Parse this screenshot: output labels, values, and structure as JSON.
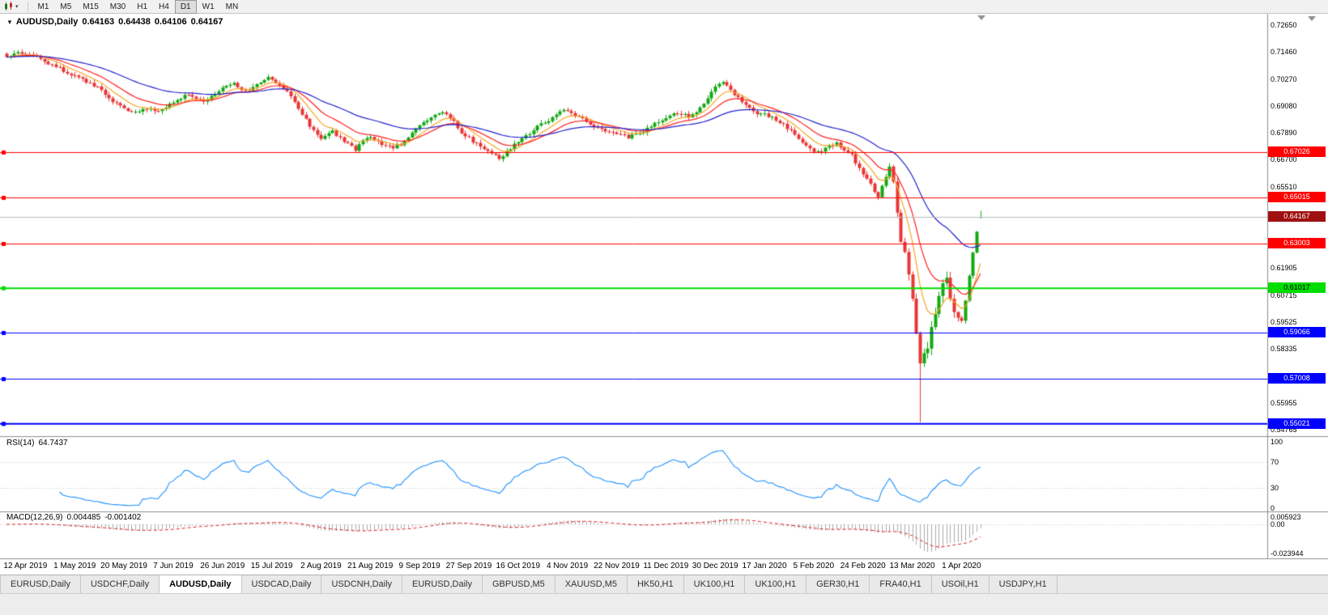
{
  "toolbar": {
    "timeframes": [
      "M1",
      "M5",
      "M15",
      "M30",
      "H1",
      "H4",
      "D1",
      "W1",
      "MN"
    ],
    "active_timeframe": "D1"
  },
  "icons": {
    "indicator_arrow": "▼",
    "chart_type_dropdown": "▾"
  },
  "chart_header": {
    "symbol": "AUDUSD,Daily",
    "open": "0.64163",
    "high": "0.64438",
    "low": "0.64106",
    "close": "0.64167"
  },
  "price_axis": {
    "ticks": [
      "0.72650",
      "0.71460",
      "0.70270",
      "0.69080",
      "0.67890",
      "0.66700",
      "0.65510",
      "0.61905",
      "0.60715",
      "0.59525",
      "0.58335",
      "0.55955",
      "0.54765"
    ]
  },
  "hlines": [
    {
      "price": 0.67026,
      "label": "0.67026",
      "color": "#FF0000",
      "width": 1,
      "text": "#FFFFFF"
    },
    {
      "price": 0.65015,
      "label": "0.65015",
      "color": "#FF0000",
      "width": 1,
      "text": "#FFFFFF"
    },
    {
      "price": 0.63003,
      "label": "0.63003",
      "color": "#FF0000",
      "width": 1,
      "text": "#FFFFFF"
    },
    {
      "price": 0.61017,
      "label": "0.61017",
      "color": "#00DD00",
      "width": 2,
      "text": "#000000"
    },
    {
      "price": 0.59066,
      "label": "0.59066",
      "color": "#0000FF",
      "width": 1,
      "text": "#FFFFFF"
    },
    {
      "price": 0.57008,
      "label": "0.57008",
      "color": "#0000FF",
      "width": 1,
      "text": "#FFFFFF"
    },
    {
      "price": 0.55021,
      "label": "0.55021",
      "color": "#0000FF",
      "width": 2,
      "text": "#FFFFFF"
    }
  ],
  "current_price": {
    "value": 0.64167,
    "label": "0.64167",
    "line_color": "#BBBBBB",
    "label_bg": "#A01010",
    "text": "#FFFFFF"
  },
  "rsi_panel": {
    "name": "RSI(14)",
    "value": "64.7437",
    "ticks": [
      100,
      70,
      30,
      0
    ],
    "levels": [
      70,
      30
    ],
    "line_color": "#1E90FF"
  },
  "macd_panel": {
    "name": "MACD(12,26,9)",
    "main_value": "0.004485",
    "signal_value": "-0.001402",
    "tick_values": [
      0.005923,
      0,
      -0.023944
    ],
    "tick_labels": [
      "0.005923",
      "0.00",
      "-0.023944"
    ],
    "hist_color": "#ABABAB",
    "signal_color": "#E02020"
  },
  "tabs": {
    "items": [
      "EURUSD,Daily",
      "USDCHF,Daily",
      "AUDUSD,Daily",
      "USDCAD,Daily",
      "USDCNH,Daily",
      "EURUSD,Daily",
      "GBPUSD,M5",
      "XAUUSD,M5",
      "HK50,H1",
      "UK100,H1",
      "UK100,H1",
      "GER30,H1",
      "FRA40,H1",
      "USOil,H1",
      "USDJPY,H1"
    ],
    "active_index": 2
  },
  "chart_data": {
    "type": "candlestick",
    "symbol": "AUDUSD",
    "timeframe": "Daily",
    "ylim": [
      0.54515,
      0.73151
    ],
    "n_bars": 258,
    "x_label_first_bar": 5,
    "x_label_step": 13,
    "x_labels": [
      "12 Apr 2019",
      "1 May 2019",
      "20 May 2019",
      "7 Jun 2019",
      "26 Jun 2019",
      "15 Jul 2019",
      "2 Aug 2019",
      "21 Aug 2019",
      "9 Sep 2019",
      "27 Sep 2019",
      "16 Oct 2019",
      "4 Nov 2019",
      "22 Nov 2019",
      "11 Dec 2019",
      "30 Dec 2019",
      "17 Jan 2020",
      "5 Feb 2020",
      "24 Feb 2020",
      "13 Mar 2020",
      "1 Apr 2020"
    ],
    "close_anchors": [
      [
        0,
        0.7118
      ],
      [
        3,
        0.7148
      ],
      [
        8,
        0.7122
      ],
      [
        14,
        0.7072
      ],
      [
        18,
        0.7038
      ],
      [
        24,
        0.6988
      ],
      [
        28,
        0.693
      ],
      [
        33,
        0.6876
      ],
      [
        37,
        0.6898
      ],
      [
        40,
        0.688
      ],
      [
        44,
        0.6928
      ],
      [
        48,
        0.6958
      ],
      [
        52,
        0.693
      ],
      [
        55,
        0.6956
      ],
      [
        57,
        0.6986
      ],
      [
        60,
        0.7006
      ],
      [
        63,
        0.697
      ],
      [
        66,
        0.6998
      ],
      [
        69,
        0.7034
      ],
      [
        72,
        0.7006
      ],
      [
        75,
        0.6948
      ],
      [
        78,
        0.6868
      ],
      [
        81,
        0.68
      ],
      [
        83,
        0.6766
      ],
      [
        86,
        0.6794
      ],
      [
        89,
        0.6754
      ],
      [
        92,
        0.6712
      ],
      [
        94,
        0.6752
      ],
      [
        96,
        0.6774
      ],
      [
        99,
        0.6734
      ],
      [
        102,
        0.6718
      ],
      [
        105,
        0.6754
      ],
      [
        107,
        0.6788
      ],
      [
        109,
        0.6822
      ],
      [
        112,
        0.686
      ],
      [
        115,
        0.6878
      ],
      [
        118,
        0.6838
      ],
      [
        120,
        0.679
      ],
      [
        122,
        0.6764
      ],
      [
        125,
        0.6728
      ],
      [
        128,
        0.6698
      ],
      [
        130,
        0.667
      ],
      [
        133,
        0.6718
      ],
      [
        135,
        0.6754
      ],
      [
        138,
        0.6788
      ],
      [
        141,
        0.6828
      ],
      [
        144,
        0.6854
      ],
      [
        146,
        0.6884
      ],
      [
        148,
        0.6888
      ],
      [
        151,
        0.6858
      ],
      [
        154,
        0.6828
      ],
      [
        157,
        0.6804
      ],
      [
        159,
        0.6788
      ],
      [
        161,
        0.6784
      ],
      [
        164,
        0.6768
      ],
      [
        167,
        0.6788
      ],
      [
        170,
        0.6814
      ],
      [
        172,
        0.6838
      ],
      [
        174,
        0.6854
      ],
      [
        177,
        0.6878
      ],
      [
        180,
        0.686
      ],
      [
        183,
        0.6898
      ],
      [
        185,
        0.6948
      ],
      [
        187,
        0.6998
      ],
      [
        189,
        0.702
      ],
      [
        192,
        0.6958
      ],
      [
        195,
        0.6908
      ],
      [
        198,
        0.6878
      ],
      [
        200,
        0.6868
      ],
      [
        203,
        0.6848
      ],
      [
        206,
        0.6808
      ],
      [
        209,
        0.6768
      ],
      [
        211,
        0.6728
      ],
      [
        213,
        0.6698
      ],
      [
        216,
        0.672
      ],
      [
        219,
        0.674
      ],
      [
        221,
        0.671
      ],
      [
        223,
        0.669
      ],
      [
        226,
        0.66
      ],
      [
        228,
        0.656
      ],
      [
        230,
        0.65
      ],
      [
        232,
        0.6598
      ],
      [
        233,
        0.6638
      ],
      [
        234,
        0.6578
      ],
      [
        235,
        0.6448
      ],
      [
        236,
        0.6318
      ],
      [
        237,
        0.6278
      ],
      [
        238,
        0.6148
      ],
      [
        239,
        0.6048
      ],
      [
        240,
        0.5888
      ],
      [
        241,
        0.5772
      ],
      [
        243,
        0.583
      ],
      [
        245,
        0.6
      ],
      [
        247,
        0.612
      ],
      [
        248,
        0.615
      ],
      [
        250,
        0.599
      ],
      [
        252,
        0.596
      ],
      [
        253,
        0.605
      ],
      [
        254,
        0.615
      ],
      [
        255,
        0.626
      ],
      [
        256,
        0.635
      ],
      [
        257,
        0.64167
      ]
    ],
    "special_bars": {
      "241": {
        "low": 0.551
      }
    },
    "last_bar": {
      "open": 0.64163,
      "high": 0.64438,
      "low": 0.64106,
      "close": 0.64167
    },
    "up_color": "#12A812",
    "down_color": "#E93535",
    "moving_averages": [
      {
        "period": 8,
        "color": "#F5A623"
      },
      {
        "period": 16,
        "color": "#FF2020"
      },
      {
        "period": 40,
        "color": "#2222CC"
      }
    ],
    "rsi": {
      "period": 14,
      "range": [
        0,
        100
      ]
    },
    "macd": {
      "fast": 12,
      "slow": 26,
      "signal": 9
    }
  }
}
